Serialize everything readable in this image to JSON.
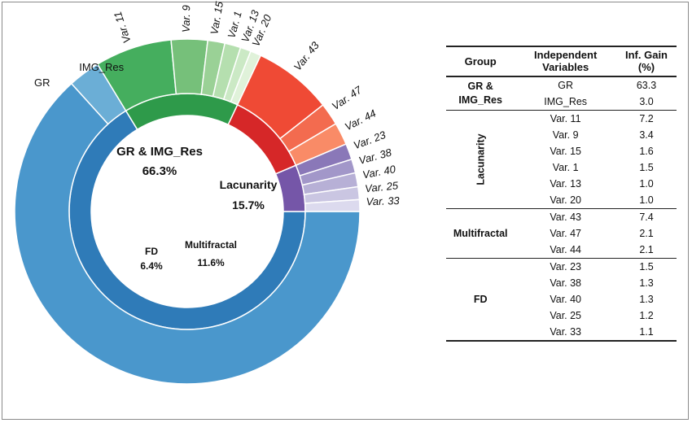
{
  "chart_data": {
    "type": "sunburst",
    "groups": [
      {
        "name": "GR & IMG_Res",
        "percent_label": "66.3%",
        "color": "#2f7bb8",
        "variables": [
          {
            "name": "GR",
            "value": 63.3,
            "color": "#4a97cc"
          },
          {
            "name": "IMG_Res",
            "value": 3.0,
            "color": "#6baed6"
          }
        ]
      },
      {
        "name": "Lacunarity",
        "percent_label": "15.7%",
        "color": "#2e9a4a",
        "variables": [
          {
            "name": "Var. 11",
            "value": 7.2,
            "color": "#45ae5e"
          },
          {
            "name": "Var. 9",
            "value": 3.4,
            "color": "#76c07a"
          },
          {
            "name": "Var. 15",
            "value": 1.6,
            "color": "#9ad196"
          },
          {
            "name": "Var. 1",
            "value": 1.5,
            "color": "#b5dfaf"
          },
          {
            "name": "Var. 13",
            "value": 1.0,
            "color": "#cbe9c5"
          },
          {
            "name": "Var. 20",
            "value": 1.0,
            "color": "#e0f2da"
          }
        ]
      },
      {
        "name": "Multifractal",
        "percent_label": "11.6%",
        "color": "#d62728",
        "variables": [
          {
            "name": "Var. 43",
            "value": 7.4,
            "color": "#ef4a35"
          },
          {
            "name": "Var. 47",
            "value": 2.1,
            "color": "#f36b4f"
          },
          {
            "name": "Var. 44",
            "value": 2.1,
            "color": "#f98b67"
          }
        ]
      },
      {
        "name": "FD",
        "percent_label": "6.4%",
        "color": "#7556a8",
        "variables": [
          {
            "name": "Var. 23",
            "value": 1.5,
            "color": "#8a78b8"
          },
          {
            "name": "Var. 38",
            "value": 1.3,
            "color": "#a297c9"
          },
          {
            "name": "Var. 40",
            "value": 1.3,
            "color": "#b7b0d6"
          },
          {
            "name": "Var. 25",
            "value": 1.2,
            "color": "#cac6e2"
          },
          {
            "name": "Var. 33",
            "value": 1.1,
            "color": "#dcdaee"
          }
        ]
      }
    ]
  },
  "table": {
    "headers": {
      "group": "Group",
      "variables": "Independent Variables",
      "gain": "Inf. Gain (%)"
    },
    "groups": [
      {
        "label": "GR & IMG_Res",
        "vertical": false,
        "rows": [
          {
            "var": "GR",
            "gain": "63.3"
          },
          {
            "var": "IMG_Res",
            "gain": "3.0"
          }
        ]
      },
      {
        "label": "Lacunarity",
        "vertical": true,
        "rows": [
          {
            "var": "Var. 11",
            "gain": "7.2"
          },
          {
            "var": "Var. 9",
            "gain": "3.4"
          },
          {
            "var": "Var. 15",
            "gain": "1.6"
          },
          {
            "var": "Var. 1",
            "gain": "1.5"
          },
          {
            "var": "Var. 13",
            "gain": "1.0"
          },
          {
            "var": "Var. 20",
            "gain": "1.0"
          }
        ]
      },
      {
        "label": "Multifractal",
        "vertical": false,
        "rows": [
          {
            "var": "Var. 43",
            "gain": "7.4"
          },
          {
            "var": "Var. 47",
            "gain": "2.1"
          },
          {
            "var": "Var. 44",
            "gain": "2.1"
          }
        ]
      },
      {
        "label": "FD",
        "vertical": false,
        "rows": [
          {
            "var": "Var. 23",
            "gain": "1.5"
          },
          {
            "var": "Var. 38",
            "gain": "1.3"
          },
          {
            "var": "Var. 40",
            "gain": "1.3"
          },
          {
            "var": "Var. 25",
            "gain": "1.2"
          },
          {
            "var": "Var. 33",
            "gain": "1.1"
          }
        ]
      }
    ]
  }
}
